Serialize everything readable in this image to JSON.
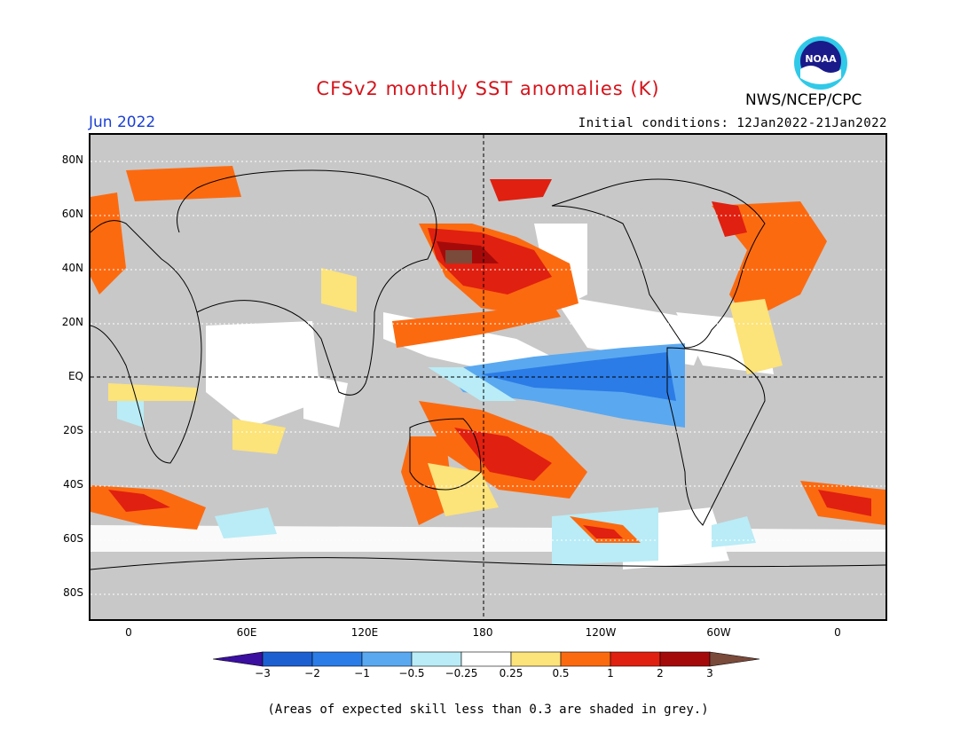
{
  "title": "CFSv2 monthly SST anomalies (K)",
  "month": "Jun 2022",
  "initial_conditions": "Initial conditions: 12Jan2022-21Jan2022",
  "agency": "NWS/NCEP/CPC",
  "logo_text": "NOAA",
  "lat_labels": [
    "80N",
    "60N",
    "40N",
    "20N",
    "EQ",
    "20S",
    "40S",
    "60S",
    "80S"
  ],
  "lon_labels": [
    "0",
    "60E",
    "120E",
    "180",
    "120W",
    "60W",
    "0"
  ],
  "colorbar": {
    "labels": [
      "−3",
      "−2",
      "−1",
      "−0.5",
      "−0.25",
      "0.25",
      "0.5",
      "1",
      "2",
      "3"
    ],
    "colors": [
      "#3b0fa0",
      "#1c5fd1",
      "#2b7ce6",
      "#5aa8f0",
      "#b9ecf6",
      "#ffffff",
      "#fce37a",
      "#fc6a10",
      "#e02010",
      "#a50a0a",
      "#7a4a3a"
    ]
  },
  "note": "(Areas of expected skill less than 0.3 are shaded in grey.)"
}
